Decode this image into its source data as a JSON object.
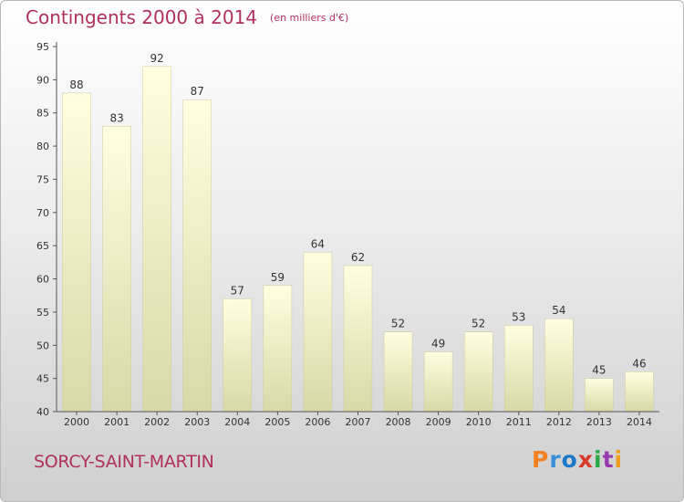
{
  "title": "Contingents 2000 à 2014",
  "unit": "(en milliers d'€)",
  "commune": "SORCY-SAINT-MARTIN",
  "logo": {
    "letters": [
      "P",
      "r",
      "o",
      "x",
      "i",
      "t",
      "i"
    ],
    "colors": [
      "#f08020",
      "#3a8fd8",
      "#1e78c8",
      "#d83a2a",
      "#2aa94a",
      "#9a3ab0",
      "#f0a020"
    ]
  },
  "colors": {
    "title": "#b0305e",
    "axis": "#555555",
    "bar_top": "#ffffe0",
    "bar_bottom": "#d8d8a8"
  },
  "chart_data": {
    "type": "bar",
    "categories": [
      "2000",
      "2001",
      "2002",
      "2003",
      "2004",
      "2005",
      "2006",
      "2007",
      "2008",
      "2009",
      "2010",
      "2011",
      "2012",
      "2013",
      "2014"
    ],
    "values": [
      88,
      83,
      92,
      87,
      57,
      59,
      64,
      62,
      52,
      49,
      52,
      53,
      54,
      45,
      46
    ],
    "ylim": [
      40,
      95
    ],
    "yticks": [
      40,
      45,
      50,
      55,
      60,
      65,
      70,
      75,
      80,
      85,
      90,
      95
    ],
    "grid": false
  }
}
